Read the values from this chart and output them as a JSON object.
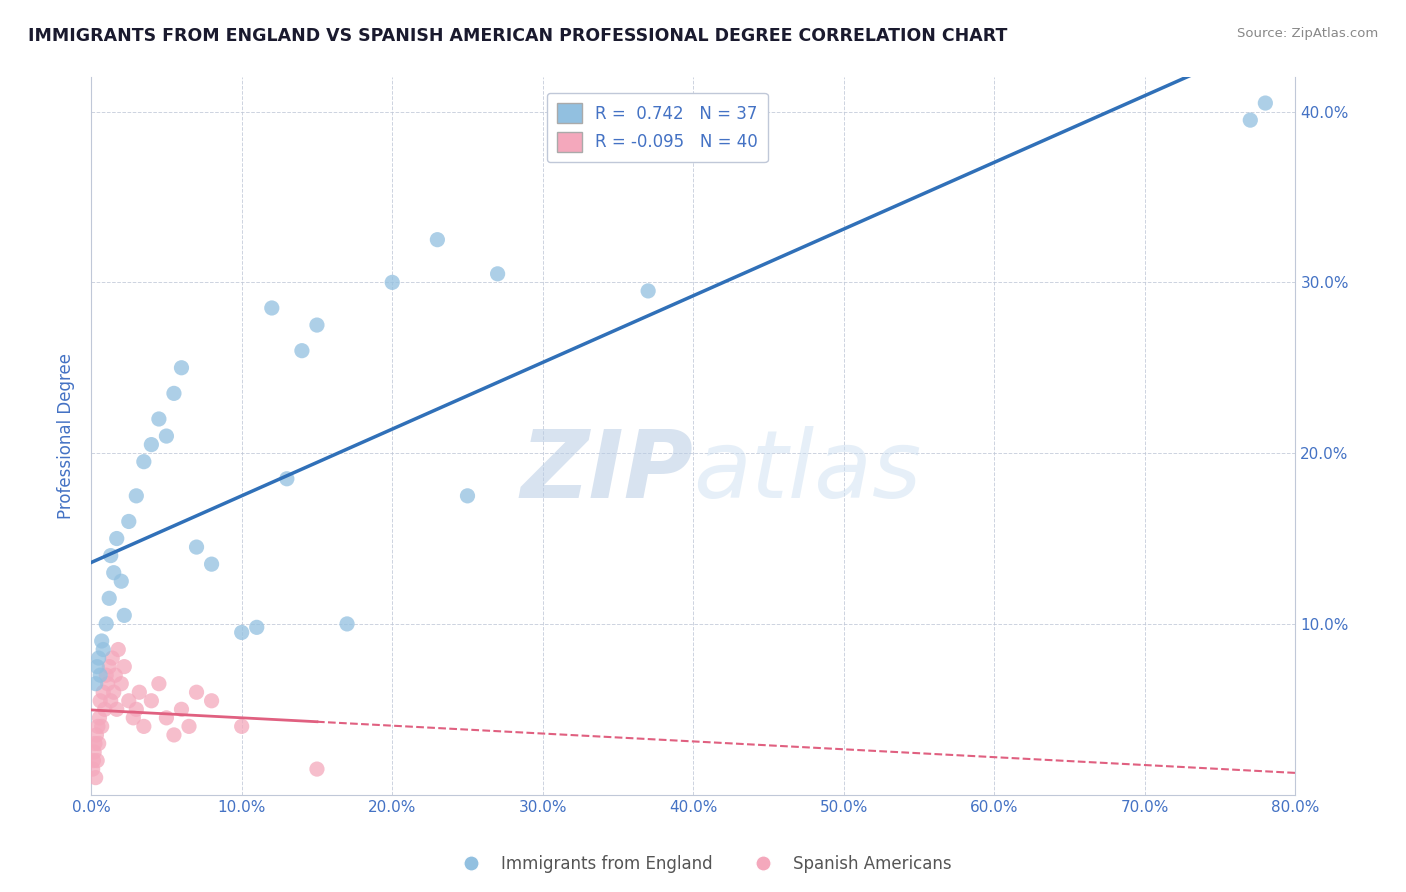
{
  "title": "IMMIGRANTS FROM ENGLAND VS SPANISH AMERICAN PROFESSIONAL DEGREE CORRELATION CHART",
  "source": "Source: ZipAtlas.com",
  "ylabel": "Professional Degree",
  "watermark": "ZIPatlas",
  "xlim": [
    0.0,
    80.0
  ],
  "ylim": [
    0.0,
    42.0
  ],
  "xticks": [
    0.0,
    10.0,
    20.0,
    30.0,
    40.0,
    50.0,
    60.0,
    70.0,
    80.0
  ],
  "yticks": [
    0.0,
    10.0,
    20.0,
    30.0,
    40.0
  ],
  "blue_R": 0.742,
  "blue_N": 37,
  "pink_R": -0.095,
  "pink_N": 40,
  "blue_color": "#92c0e0",
  "pink_color": "#f4a8bc",
  "blue_line_color": "#3070b8",
  "pink_line_color": "#e06080",
  "legend1_label": "Immigrants from England",
  "legend2_label": "Spanish Americans",
  "blue_x": [
    0.3,
    0.4,
    0.5,
    0.6,
    0.7,
    0.8,
    1.0,
    1.2,
    1.3,
    1.5,
    1.7,
    2.0,
    2.2,
    2.5,
    3.0,
    3.5,
    4.0,
    4.5,
    5.0,
    5.5,
    6.0,
    7.0,
    8.0,
    10.0,
    11.0,
    12.0,
    13.0,
    14.0,
    15.0,
    17.0,
    20.0,
    23.0,
    25.0,
    27.0,
    37.0,
    77.0,
    78.0
  ],
  "blue_y": [
    6.5,
    7.5,
    8.0,
    7.0,
    9.0,
    8.5,
    10.0,
    11.5,
    14.0,
    13.0,
    15.0,
    12.5,
    10.5,
    16.0,
    17.5,
    19.5,
    20.5,
    22.0,
    21.0,
    23.5,
    25.0,
    14.5,
    13.5,
    9.5,
    9.8,
    28.5,
    18.5,
    26.0,
    27.5,
    10.0,
    30.0,
    32.5,
    17.5,
    30.5,
    29.5,
    39.5,
    40.5
  ],
  "pink_x": [
    0.1,
    0.15,
    0.2,
    0.25,
    0.3,
    0.35,
    0.4,
    0.45,
    0.5,
    0.55,
    0.6,
    0.7,
    0.8,
    0.9,
    1.0,
    1.1,
    1.2,
    1.3,
    1.4,
    1.5,
    1.6,
    1.7,
    1.8,
    2.0,
    2.2,
    2.5,
    2.8,
    3.0,
    3.2,
    3.5,
    4.0,
    4.5,
    5.0,
    5.5,
    6.0,
    6.5,
    7.0,
    8.0,
    10.0,
    15.0
  ],
  "pink_y": [
    1.5,
    2.0,
    2.5,
    3.0,
    1.0,
    3.5,
    2.0,
    4.0,
    3.0,
    4.5,
    5.5,
    4.0,
    6.0,
    5.0,
    7.0,
    6.5,
    7.5,
    5.5,
    8.0,
    6.0,
    7.0,
    5.0,
    8.5,
    6.5,
    7.5,
    5.5,
    4.5,
    5.0,
    6.0,
    4.0,
    5.5,
    6.5,
    4.5,
    3.5,
    5.0,
    4.0,
    6.0,
    5.5,
    4.0,
    1.5
  ]
}
